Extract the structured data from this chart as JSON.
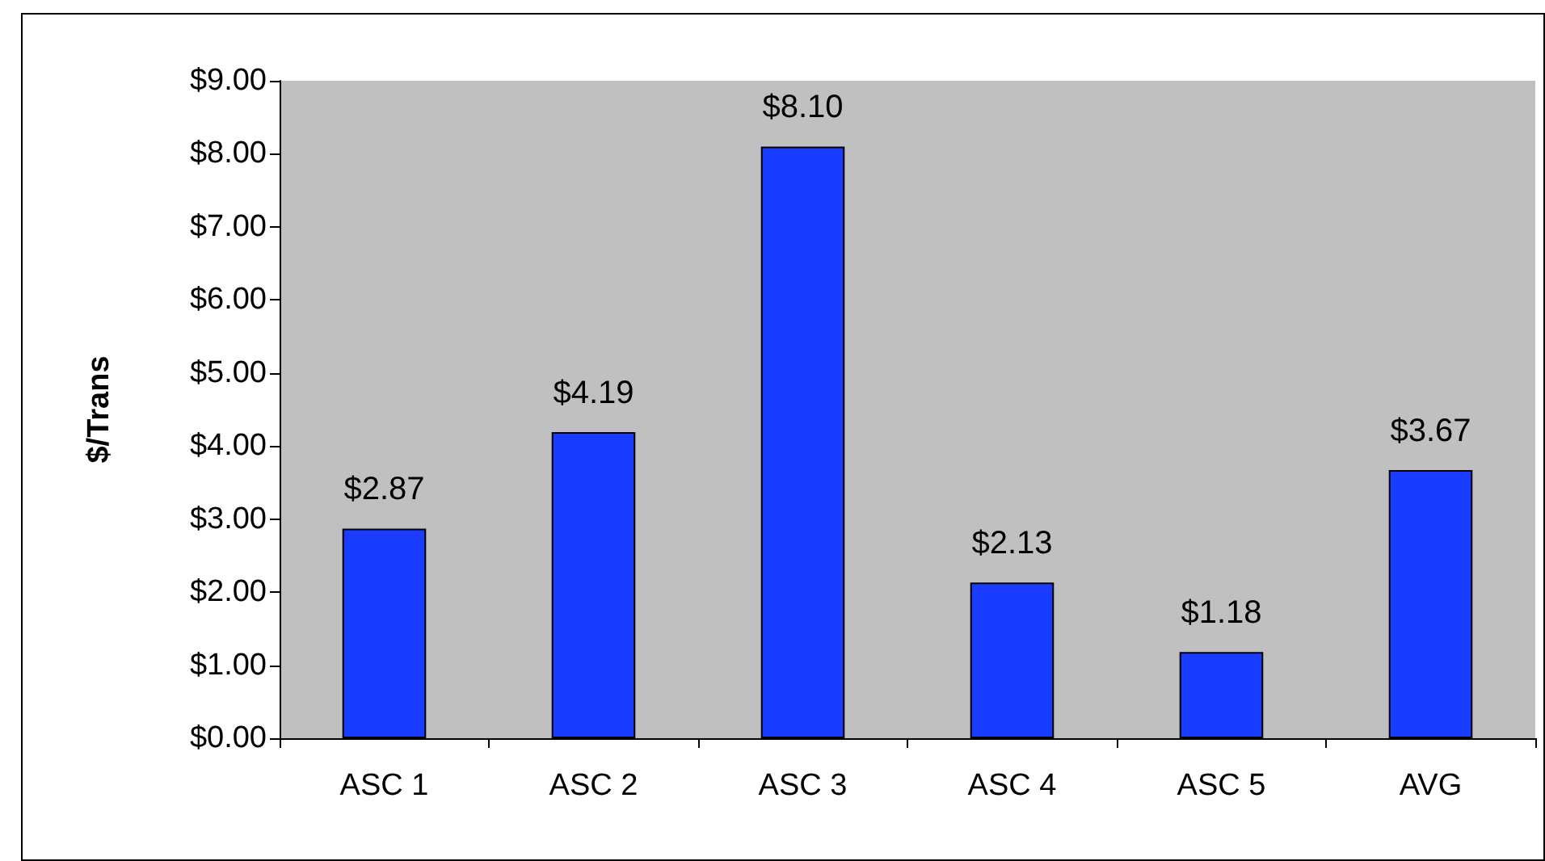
{
  "chart_data": {
    "type": "bar",
    "ylabel": "$/Trans",
    "categories": [
      "ASC 1",
      "ASC 2",
      "ASC 3",
      "ASC 4",
      "ASC 5",
      "AVG"
    ],
    "values": [
      2.87,
      4.19,
      8.1,
      2.13,
      1.18,
      3.67
    ],
    "value_labels": [
      "$2.87",
      "$4.19",
      "$8.10",
      "$2.13",
      "$1.18",
      "$3.67"
    ],
    "color": "#1a3cff",
    "ylim": [
      0,
      9
    ],
    "yticks": [
      {
        "value": 0,
        "label": "$0.00"
      },
      {
        "value": 1,
        "label": "$1.00"
      },
      {
        "value": 2,
        "label": "$2.00"
      },
      {
        "value": 3,
        "label": "$3.00"
      },
      {
        "value": 4,
        "label": "$4.00"
      },
      {
        "value": 5,
        "label": "$5.00"
      },
      {
        "value": 6,
        "label": "$6.00"
      },
      {
        "value": 7,
        "label": "$7.00"
      },
      {
        "value": 8,
        "label": "$8.00"
      },
      {
        "value": 9,
        "label": "$9.00"
      }
    ],
    "grid": false
  }
}
